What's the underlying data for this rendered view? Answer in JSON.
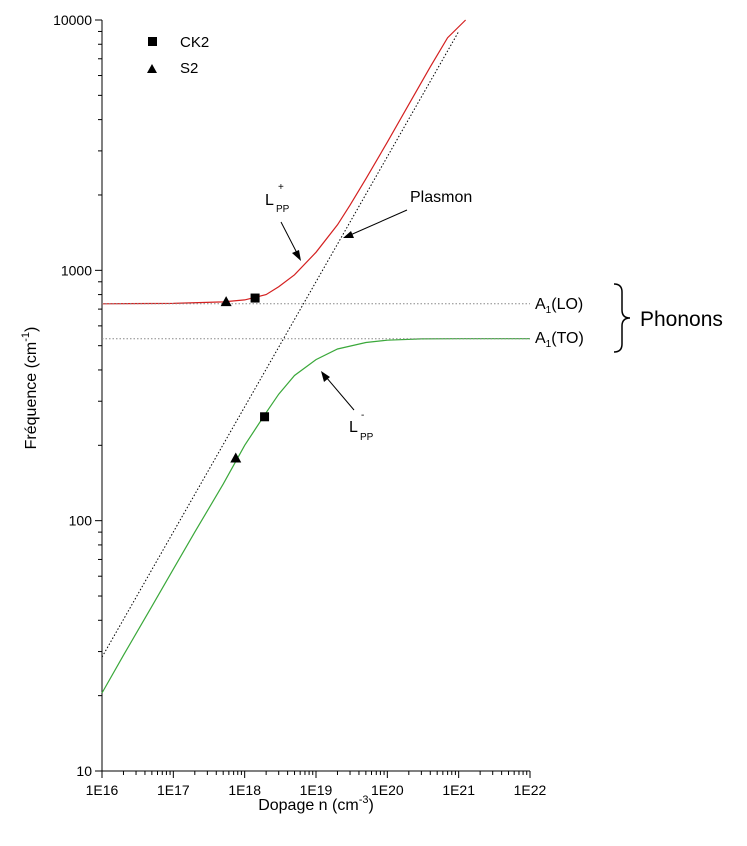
{
  "chart_data": {
    "type": "line",
    "xlabel": "Dopage n (cm",
    "xlabel_sup": "-3",
    "xlabel_end": ")",
    "ylabel": "Fréquence (cm",
    "ylabel_sup": "-1",
    "ylabel_end": ")",
    "x_scale": "log",
    "y_scale": "log",
    "xlim": [
      1e+16,
      1e+22
    ],
    "ylim": [
      10,
      10000
    ],
    "x_ticks": [
      {
        "value": 1e+16,
        "label": "1E16"
      },
      {
        "value": 1e+17,
        "label": "1E17"
      },
      {
        "value": 1e+18,
        "label": "1E18"
      },
      {
        "value": 1e+19,
        "label": "1E19"
      },
      {
        "value": 1e+20,
        "label": "1E20"
      },
      {
        "value": 1e+21,
        "label": "1E21"
      },
      {
        "value": 1e+22,
        "label": "1E22"
      }
    ],
    "y_ticks": [
      {
        "value": 10,
        "label": "10"
      },
      {
        "value": 100,
        "label": "100"
      },
      {
        "value": 1000,
        "label": "1000"
      },
      {
        "value": 10000,
        "label": "10000"
      }
    ],
    "grid": false,
    "legend_placement": "top-left",
    "series": [
      {
        "name": "CK2",
        "marker": "square",
        "points": [
          {
            "x": 1.4e+18,
            "y": 775
          },
          {
            "x": 1.9e+18,
            "y": 260
          }
        ]
      },
      {
        "name": "S2",
        "marker": "triangle",
        "points": [
          {
            "x": 5.5e+17,
            "y": 750
          },
          {
            "x": 7.5e+17,
            "y": 178
          }
        ]
      }
    ],
    "curves": [
      {
        "id": "lpp-plus",
        "color": "#d42020",
        "points": [
          [
            1e+16,
            735
          ],
          [
            1e+17,
            738
          ],
          [
            5e+17,
            748
          ],
          [
            1e+18,
            762
          ],
          [
            2e+18,
            800
          ],
          [
            3e+18,
            860
          ],
          [
            5e+18,
            960
          ],
          [
            1e+19,
            1180
          ],
          [
            2e+19,
            1520
          ],
          [
            3e+19,
            1820
          ],
          [
            5e+19,
            2320
          ],
          [
            1e+20,
            3250
          ],
          [
            2e+20,
            4600
          ],
          [
            4e+20,
            6500
          ],
          [
            7e+20,
            8500
          ],
          [
            1.25e+21,
            10000
          ]
        ]
      },
      {
        "id": "lpp-minus",
        "color": "#3aa83a",
        "points": [
          [
            1e+16,
            20.5
          ],
          [
            2e+16,
            29
          ],
          [
            5e+16,
            45.5
          ],
          [
            1e+17,
            64
          ],
          [
            2e+17,
            90
          ],
          [
            5e+17,
            140
          ],
          [
            1e+18,
            200
          ],
          [
            2e+18,
            270
          ],
          [
            3e+18,
            320
          ],
          [
            5e+18,
            380
          ],
          [
            1e+19,
            440
          ],
          [
            2e+19,
            485
          ],
          [
            5e+19,
            515
          ],
          [
            1e+20,
            526
          ],
          [
            3e+20,
            532
          ],
          [
            1e+21,
            533
          ],
          [
            1e+22,
            533
          ]
        ]
      },
      {
        "id": "plasmon",
        "color": "#000000",
        "dashed": true,
        "points": [
          [
            1e+16,
            28.5
          ],
          [
            1e+21,
            9000
          ]
        ]
      },
      {
        "id": "a1-lo",
        "color": "#888888",
        "dashed": true,
        "points": [
          [
            1e+16,
            735
          ],
          [
            1e+22,
            735
          ]
        ]
      },
      {
        "id": "a1-to",
        "color": "#888888",
        "dashed": true,
        "points": [
          [
            1e+16,
            533
          ],
          [
            1e+22,
            533
          ]
        ]
      }
    ],
    "annotations": {
      "lpp_plus": {
        "main": "L",
        "sup": "+",
        "sub": "PP"
      },
      "lpp_minus": {
        "main": "L",
        "sup": "-",
        "sub": "PP"
      },
      "plasmon": "Plasmon",
      "a1_lo": {
        "main": "A",
        "sub": "1",
        "rest": "(LO)"
      },
      "a1_to": {
        "main": "A",
        "sub": "1",
        "rest": "(TO)"
      },
      "phonons": "Phonons"
    }
  }
}
